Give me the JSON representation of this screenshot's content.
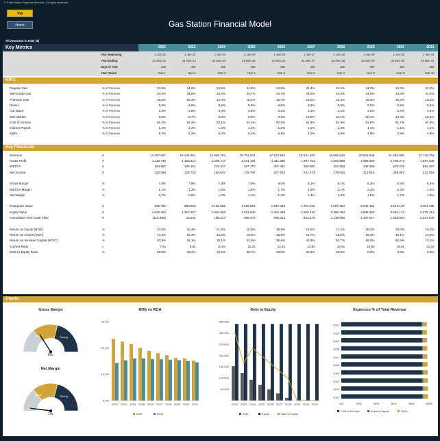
{
  "copyright": "© Profit Vision Financial Services. All rights reserved.",
  "nav": {
    "top_label": "Top",
    "home_label": "Home"
  },
  "title": "Gas Station Financial Model",
  "amounts_label": "All Amounts in  USD ($)",
  "key_metrics_label": "Key Metrics",
  "years": [
    "2022",
    "2023",
    "2024",
    "2025",
    "2026",
    "2027",
    "2028",
    "2029",
    "2030",
    "2031"
  ],
  "meta_rows": [
    {
      "label": "Year Beginning",
      "values": [
        "1-Jan-22",
        "1-Jan-23",
        "1-Jan-24",
        "1-Jan-25",
        "1-Jan-26",
        "1-Jan-27",
        "1-Jan-28",
        "1-Jan-29",
        "1-Jan-30",
        "1-Jan-31"
      ]
    },
    {
      "label": "Year Ending",
      "values": [
        "31-Dec-22",
        "31-Dec-23",
        "31-Dec-24",
        "31-Dec-25",
        "31-Dec-26",
        "31-Dec-27",
        "31-Dec-28",
        "31-Dec-29",
        "31-Dec-30",
        "31-Dec-31"
      ]
    },
    {
      "label": "Days in Year",
      "values": [
        "365",
        "365",
        "366",
        "365",
        "365",
        "365",
        "366",
        "365",
        "365",
        "365"
      ]
    },
    {
      "label": "Year Period",
      "values": [
        "Year 1",
        "Year 2",
        "Year 3",
        "Year 4",
        "Year 5",
        "Year 6",
        "Year 7",
        "Year 8",
        "Year 9",
        "Year 10"
      ]
    }
  ],
  "kpi_section": "KPI's",
  "kpi_rows": [
    {
      "name": "Regular Gas",
      "unit": "% of Revenue",
      "values": [
        "24,6%",
        "24,6%",
        "24,5%",
        "24,5%",
        "24,5%",
        "24,4%",
        "24,4%",
        "24,3%",
        "24,3%",
        "24,3%"
      ]
    },
    {
      "name": "Mid-Grade Gas",
      "unit": "% of Revenue",
      "values": [
        "34,9%",
        "34,8%",
        "34,8%",
        "34,7%",
        "34,7%",
        "34,6%",
        "34,6%",
        "34,5%",
        "34,4%",
        "34,4%"
      ]
    },
    {
      "name": "Premium Gas",
      "unit": "% of Revenue",
      "values": [
        "18,5%",
        "18,4%",
        "18,4%",
        "18,4%",
        "18,4%",
        "18,3%",
        "18,3%",
        "18,3%",
        "18,2%",
        "18,2%"
      ]
    },
    {
      "name": "Diesel",
      "unit": "% of Revenue",
      "values": [
        "9,6%",
        "9,6%",
        "9,5%",
        "9,5%",
        "9,5%",
        "9,5%",
        "9,5%",
        "9,5%",
        "9,5%",
        "9,4%"
      ]
    },
    {
      "name": "Car Wash",
      "unit": "% of Revenue",
      "values": [
        "2,8%",
        "2,9%",
        "3,0%",
        "3,0%",
        "3,1%",
        "3,1%",
        "3,2%",
        "3,2%",
        "3,3%",
        "3,4%"
      ]
    },
    {
      "name": "Mini Market",
      "unit": "% of Revenue",
      "values": [
        "9,6%",
        "9,7%",
        "9,8%",
        "9,9%",
        "9,9%",
        "10,0%",
        "10,1%",
        "10,2%",
        "10,3%",
        "10,4%"
      ]
    },
    {
      "name": "Cost of Service",
      "unit": "% of Revenue",
      "values": [
        "92,2%",
        "92,2%",
        "92,1%",
        "92,1%",
        "92,0%",
        "91,9%",
        "91,9%",
        "91,8%",
        "91,7%",
        "91,6%"
      ]
    },
    {
      "name": "Indirect Payroll",
      "unit": "% of Revenue",
      "values": [
        "1,3%",
        "1,3%",
        "1,3%",
        "1,2%",
        "1,2%",
        "1,2%",
        "1,2%",
        "1,1%",
        "1,1%",
        "1,1%"
      ]
    },
    {
      "name": "OpEx",
      "unit": "% of Revenue",
      "values": [
        "5,3%",
        "5,2%",
        "5,2%",
        "5,1%",
        "5,1%",
        "5,0%",
        "4,9%",
        "4,9%",
        "4,8%",
        "4,8%"
      ]
    }
  ],
  "fin_section": "Key Financials",
  "fin_rows": [
    {
      "name": "Revenue",
      "unit": "$",
      "values": [
        "14.387.827",
        "15.135.891",
        "15.966.764",
        "16.751.643",
        "17.623.584",
        "18.541.263",
        "19.560.543",
        "20.523.646",
        "21.593.590",
        "22.719.764"
      ]
    },
    {
      "name": "Gross Profit",
      "unit": "$",
      "values": [
        "1.115.748",
        "1.183.313",
        "1.259.147",
        "1.331.154",
        "1.411.966",
        "1.497.761",
        "1.593.969",
        "1.685.569",
        "1.788.273",
        "1.897.338"
      ]
    },
    {
      "name": "EBITDA",
      "unit": "$",
      "values": [
        "164.552",
        "196.101",
        "233.337",
        "267.370",
        "307.491",
        "350.892",
        "401.593",
        "448.499",
        "503.228",
        "562.287"
      ]
    },
    {
      "name": "Net Income",
      "unit": "$",
      "values": [
        "102.058",
        "125.720",
        "153.647",
        "178.797",
        "207.923",
        "241.674",
        "278.930",
        "313.915",
        "368.067",
        "412.062"
      ]
    },
    {
      "name": "",
      "unit": "",
      "values": [
        "",
        "",
        "",
        "",
        "",
        "",
        "",
        "",
        "",
        ""
      ]
    },
    {
      "name": "Gross Margin",
      "unit": "%",
      "values": [
        "7,8%",
        "7,8%",
        "7,9%",
        "7,9%",
        "8,0%",
        "8,1%",
        "8,1%",
        "8,2%",
        "8,3%",
        "8,4%"
      ]
    },
    {
      "name": "EBITDA Margin",
      "unit": "%",
      "values": [
        "1,1%",
        "1,3%",
        "1,5%",
        "1,6%",
        "1,7%",
        "1,9%",
        "2,1%",
        "2,2%",
        "2,3%",
        "2,5%"
      ]
    },
    {
      "name": "Net Margin",
      "unit": "%",
      "values": [
        "0,7%",
        "0,8%",
        "1,0%",
        "1,1%",
        "1,2%",
        "1,3%",
        "1,4%",
        "1,5%",
        "1,7%",
        "1,8%"
      ]
    },
    {
      "name": "",
      "unit": "",
      "values": [
        "",
        "",
        "",
        "",
        "",
        "",
        "",
        "",
        "",
        ""
      ]
    },
    {
      "name": "Enterprise Value",
      "unit": "$",
      "values": [
        "822.761",
        "980.505",
        "1.166.685",
        "1.336.852",
        "1.537.453",
        "1.754.459",
        "2.007.963",
        "2.242.494",
        "2.516.140",
        "2.811.435"
      ]
    },
    {
      "name": "Equity Value",
      "unit": "$",
      "values": [
        "1.025.453",
        "1.312.207",
        "1.654.953",
        "2.001.940",
        "2.402.366",
        "2.860.915",
        "3.385.783",
        "3.926.452",
        "4.563.173",
        "5.275.413"
      ]
    },
    {
      "name": "Cumulative Free Cash Flow",
      "unit": "$",
      "values": [
        "(116.988)",
        "25.342",
        "195.227",
        "385.370",
        "598.513",
        "853.376",
        "1.138.059",
        "1.457.517",
        "1.825.593",
        "2.237.536"
      ]
    },
    {
      "name": "",
      "unit": "",
      "values": [
        "",
        "",
        "",
        "",
        "",
        "",
        "",
        "",
        "",
        ""
      ]
    },
    {
      "name": "Return on Equity (ROE)",
      "unit": "%",
      "values": [
        "23,5%",
        "22,4%",
        "21,5%",
        "20,0%",
        "18,9%",
        "18,0%",
        "17,2%",
        "16,2%",
        "16,0%",
        "15,2%"
      ]
    },
    {
      "name": "Return on Assets (ROA)",
      "unit": "%",
      "values": [
        "14,3%",
        "15,3%",
        "16,0%",
        "16,0%",
        "15,8%",
        "15,7%",
        "15,5%",
        "15,3%",
        "15,1%",
        "14,5%"
      ]
    },
    {
      "name": "Return on Invested Capital (ROIC)",
      "unit": "%",
      "values": [
        "20,8%",
        "25,1%",
        "30,1%",
        "34,6%",
        "39,9%",
        "45,9%",
        "52,7%",
        "59,0%",
        "66,3%",
        "74,2%"
      ]
    },
    {
      "name": "Current Ratio",
      "unit": "x",
      "values": [
        "7,9x",
        "8,8x",
        "10,0x",
        "11,2x",
        "12,4x",
        "13,9x",
        "15,5x",
        "16,8x",
        "18,9x",
        "21,0x"
      ]
    },
    {
      "name": "Debt-to-Equity Ratio",
      "unit": "%",
      "values": [
        "59,9%",
        "33,2%",
        "46,5%",
        "39,7%",
        "33,0%",
        "26,3%",
        "19,5%",
        "0,0%",
        "0,0%",
        "0,0%"
      ]
    }
  ],
  "charts_label": "Charts",
  "colors": {
    "navy": "#1e3348",
    "gold": "#d2a437",
    "teal": "#4a8c9c",
    "bg": "#0f1e2d"
  },
  "chart_data": [
    {
      "type": "gauge",
      "title": "Gross Margin",
      "bands": [
        "Good",
        "Strong"
      ],
      "value_label": "8%",
      "value": 0.08
    },
    {
      "type": "gauge",
      "title": "Net Margin",
      "bands": [
        "Good",
        "Strong"
      ],
      "value_label": "1%",
      "value": 0.01
    },
    {
      "type": "bar",
      "title": "ROE vs ROA",
      "categories": [
        "2022",
        "2023",
        "2024",
        "2025",
        "2026",
        "2027",
        "2028",
        "2029",
        "2030",
        "2031"
      ],
      "series": [
        {
          "name": "ROE",
          "values": [
            23.5,
            22.4,
            21.5,
            20.0,
            18.9,
            18.0,
            17.2,
            16.2,
            16.0,
            15.2
          ]
        },
        {
          "name": "ROA",
          "values": [
            14.3,
            15.3,
            16.0,
            16.0,
            15.8,
            15.7,
            15.5,
            15.3,
            15.1,
            14.5
          ]
        }
      ],
      "yticks": [
        "0,0%",
        "10,0%",
        "20,0%",
        "30,0%"
      ],
      "ylim": [
        0,
        30
      ]
    },
    {
      "type": "bar",
      "title": "Debt to Equity",
      "categories": [
        "2022",
        "2023",
        "2024",
        "2025",
        "2026",
        "2027",
        "2028",
        "2029",
        "2030",
        "2031"
      ],
      "series": [
        {
          "name": "Debt",
          "values": [
            152000,
            122000,
            92000,
            70000,
            50000,
            32000,
            12000,
            0,
            0,
            0
          ]
        },
        {
          "name": "Equity",
          "values": [
            340000,
            340000,
            340000,
            340000,
            340000,
            340000,
            340000,
            340000,
            340000,
            340000
          ]
        },
        {
          "name": "Debt to Equity",
          "values": [
            59.9,
            33.2,
            46.5,
            39.7,
            33.0,
            26.3,
            19.5,
            0,
            0,
            0
          ]
        }
      ],
      "yticks": [
        "-",
        "50.000",
        "100.000",
        "150.000",
        "200.000",
        "250.000",
        "300.000",
        "350.000"
      ],
      "ylim": [
        0,
        350000
      ]
    },
    {
      "type": "bar",
      "title": "Expenses % of Total Revenue",
      "categories": [
        "2031",
        "2030",
        "2029",
        "2028",
        "2027",
        "2026",
        "2025",
        "2024",
        "2023",
        "2022"
      ],
      "series": [
        {
          "name": "Cost of Service",
          "values": [
            91.6,
            91.7,
            91.8,
            91.9,
            91.9,
            92.0,
            92.1,
            92.1,
            92.2,
            92.2
          ]
        },
        {
          "name": "Indirect Payroll",
          "values": [
            1.1,
            1.1,
            1.1,
            1.2,
            1.2,
            1.2,
            1.2,
            1.3,
            1.3,
            1.3
          ]
        },
        {
          "name": "OpEx",
          "values": [
            4.8,
            4.8,
            4.9,
            4.9,
            5.0,
            5.1,
            5.1,
            5.2,
            5.2,
            5.3
          ]
        }
      ],
      "xticks": [
        "0%",
        "20%",
        "40%",
        "60%",
        "80%",
        "100%"
      ],
      "xlim": [
        0,
        100
      ]
    }
  ]
}
